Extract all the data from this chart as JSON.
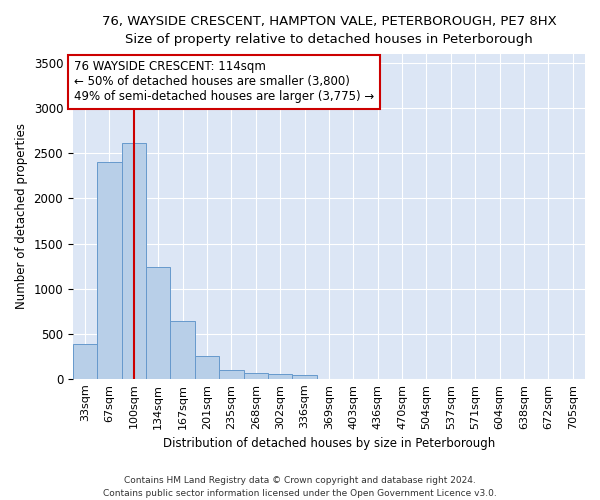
{
  "title": "76, WAYSIDE CRESCENT, HAMPTON VALE, PETERBOROUGH, PE7 8HX",
  "subtitle": "Size of property relative to detached houses in Peterborough",
  "xlabel": "Distribution of detached houses by size in Peterborough",
  "ylabel": "Number of detached properties",
  "categories": [
    "33sqm",
    "67sqm",
    "100sqm",
    "134sqm",
    "167sqm",
    "201sqm",
    "235sqm",
    "268sqm",
    "302sqm",
    "336sqm",
    "369sqm",
    "403sqm",
    "436sqm",
    "470sqm",
    "504sqm",
    "537sqm",
    "571sqm",
    "604sqm",
    "638sqm",
    "672sqm",
    "705sqm"
  ],
  "values": [
    390,
    2400,
    2610,
    1240,
    640,
    250,
    95,
    60,
    55,
    40,
    0,
    0,
    0,
    0,
    0,
    0,
    0,
    0,
    0,
    0,
    0
  ],
  "bar_color": "#b8cfe8",
  "bar_edge_color": "#6699cc",
  "highlight_idx": 2,
  "highlight_color": "#cc0000",
  "annotation_line1": "76 WAYSIDE CRESCENT: 114sqm",
  "annotation_line2": "← 50% of detached houses are smaller (3,800)",
  "annotation_line3": "49% of semi-detached houses are larger (3,775) →",
  "annotation_box_facecolor": "#ffffff",
  "annotation_box_edgecolor": "#cc0000",
  "ylim": [
    0,
    3600
  ],
  "yticks": [
    0,
    500,
    1000,
    1500,
    2000,
    2500,
    3000,
    3500
  ],
  "background_color": "#dce6f5",
  "grid_color": "#ffffff",
  "footer1": "Contains HM Land Registry data © Crown copyright and database right 2024.",
  "footer2": "Contains public sector information licensed under the Open Government Licence v3.0."
}
